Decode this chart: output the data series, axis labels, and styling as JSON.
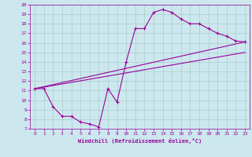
{
  "xlabel": "Windchill (Refroidissement éolien,°C)",
  "bg_color": "#cce8ee",
  "line_color": "#990099",
  "xlim": [
    -0.5,
    23.5
  ],
  "ylim": [
    7,
    20
  ],
  "xticks": [
    0,
    1,
    2,
    3,
    4,
    5,
    6,
    7,
    8,
    9,
    10,
    11,
    12,
    13,
    14,
    15,
    16,
    17,
    18,
    19,
    20,
    21,
    22,
    23
  ],
  "yticks": [
    7,
    8,
    9,
    10,
    11,
    12,
    13,
    14,
    15,
    16,
    17,
    18,
    19,
    20
  ],
  "line1_x": [
    0,
    1,
    2,
    3,
    4,
    5,
    6,
    7,
    8,
    9,
    10,
    11,
    12,
    13,
    14,
    15,
    16,
    17,
    18,
    19,
    20,
    21,
    22,
    23
  ],
  "line1_y": [
    11.2,
    11.2,
    9.3,
    8.3,
    8.3,
    7.7,
    7.5,
    7.2,
    11.2,
    9.8,
    14.0,
    17.5,
    17.5,
    19.2,
    19.5,
    19.2,
    18.5,
    18.0,
    18.0,
    17.5,
    17.0,
    16.7,
    16.2,
    16.1
  ],
  "line2_x": [
    0,
    23
  ],
  "line2_y": [
    11.2,
    16.1
  ],
  "line3_x": [
    0,
    23
  ],
  "line3_y": [
    11.2,
    15.0
  ],
  "grid_color": "#aacccc",
  "xlabel_color": "#990099",
  "tick_color": "#990099",
  "spine_color": "#990099"
}
